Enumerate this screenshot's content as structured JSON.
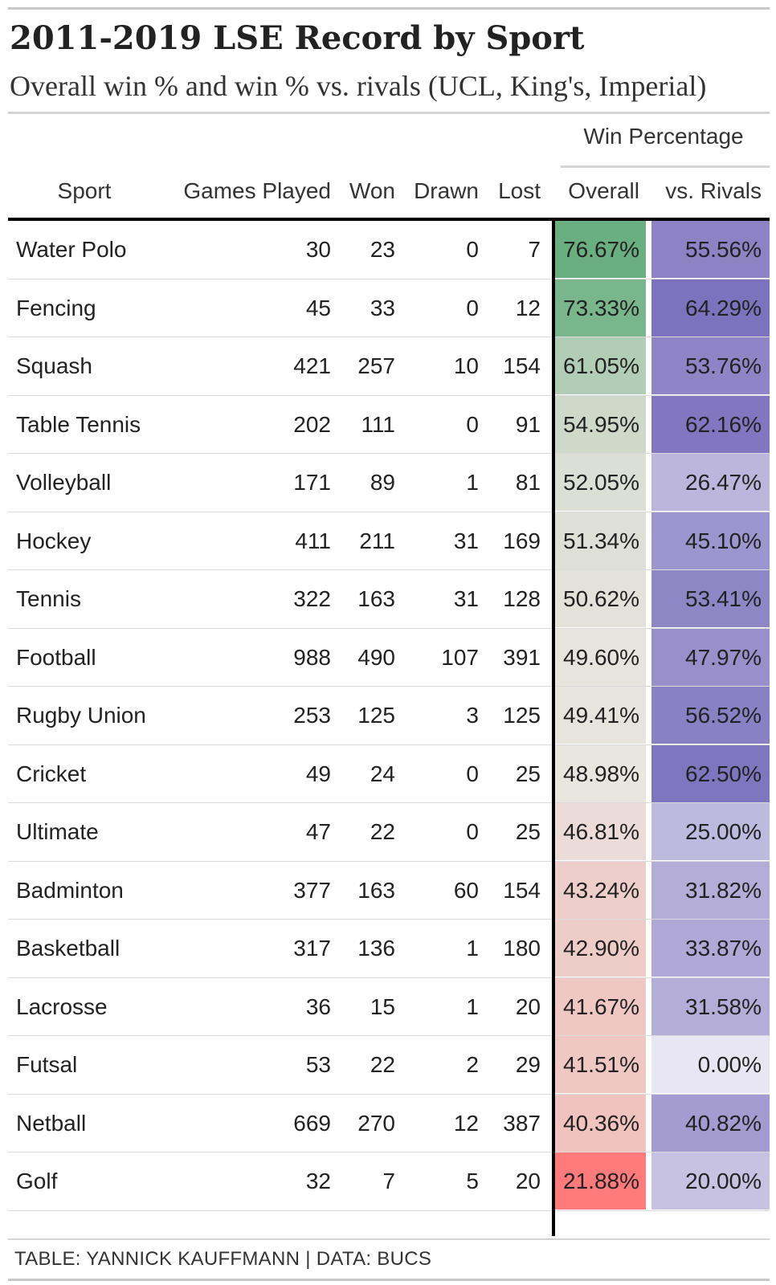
{
  "title": "2011-2019 LSE Record by Sport",
  "subtitle": "Overall win % and win % vs. rivals (UCL, King's, Imperial)",
  "spanner": "Win Percentage",
  "columns": {
    "sport": "Sport",
    "games": "Games Played",
    "won": "Won",
    "drawn": "Drawn",
    "lost": "Lost",
    "overall": "Overall",
    "rivals": "vs. Rivals"
  },
  "footer": "TABLE: YANNICK KAUFFMANN | DATA: BUCS",
  "colors": {
    "overall_low": "#ff7b7b",
    "overall_mid": "#e9e5df",
    "overall_high": "#6aaf7f",
    "rivals_low": "#e8e6f3",
    "rivals_high": "#7d72bd"
  },
  "chart_data": {
    "type": "table",
    "color_scale": {
      "overall_domain": [
        21.88,
        49.0,
        76.67
      ],
      "rivals_domain": [
        0.0,
        64.29
      ]
    },
    "rows": [
      {
        "sport": "Water Polo",
        "games": "30",
        "won": "23",
        "drawn": "0",
        "lost": "7",
        "overall": 76.67,
        "overall_label": "76.67%",
        "rivals": 55.56,
        "rivals_label": "55.56%"
      },
      {
        "sport": "Fencing",
        "games": "45",
        "won": "33",
        "drawn": "0",
        "lost": "12",
        "overall": 73.33,
        "overall_label": "73.33%",
        "rivals": 64.29,
        "rivals_label": "64.29%"
      },
      {
        "sport": "Squash",
        "games": "421",
        "won": "257",
        "drawn": "10",
        "lost": "154",
        "overall": 61.05,
        "overall_label": "61.05%",
        "rivals": 53.76,
        "rivals_label": "53.76%"
      },
      {
        "sport": "Table Tennis",
        "games": "202",
        "won": "111",
        "drawn": "0",
        "lost": "91",
        "overall": 54.95,
        "overall_label": "54.95%",
        "rivals": 62.16,
        "rivals_label": "62.16%"
      },
      {
        "sport": "Volleyball",
        "games": "171",
        "won": "89",
        "drawn": "1",
        "lost": "81",
        "overall": 52.05,
        "overall_label": "52.05%",
        "rivals": 26.47,
        "rivals_label": "26.47%"
      },
      {
        "sport": "Hockey",
        "games": "411",
        "won": "211",
        "drawn": "31",
        "lost": "169",
        "overall": 51.34,
        "overall_label": "51.34%",
        "rivals": 45.1,
        "rivals_label": "45.10%"
      },
      {
        "sport": "Tennis",
        "games": "322",
        "won": "163",
        "drawn": "31",
        "lost": "128",
        "overall": 50.62,
        "overall_label": "50.62%",
        "rivals": 53.41,
        "rivals_label": "53.41%"
      },
      {
        "sport": "Football",
        "games": "988",
        "won": "490",
        "drawn": "107",
        "lost": "391",
        "overall": 49.6,
        "overall_label": "49.60%",
        "rivals": 47.97,
        "rivals_label": "47.97%"
      },
      {
        "sport": "Rugby Union",
        "games": "253",
        "won": "125",
        "drawn": "3",
        "lost": "125",
        "overall": 49.41,
        "overall_label": "49.41%",
        "rivals": 56.52,
        "rivals_label": "56.52%"
      },
      {
        "sport": "Cricket",
        "games": "49",
        "won": "24",
        "drawn": "0",
        "lost": "25",
        "overall": 48.98,
        "overall_label": "48.98%",
        "rivals": 62.5,
        "rivals_label": "62.50%"
      },
      {
        "sport": "Ultimate",
        "games": "47",
        "won": "22",
        "drawn": "0",
        "lost": "25",
        "overall": 46.81,
        "overall_label": "46.81%",
        "rivals": 25.0,
        "rivals_label": "25.00%"
      },
      {
        "sport": "Badminton",
        "games": "377",
        "won": "163",
        "drawn": "60",
        "lost": "154",
        "overall": 43.24,
        "overall_label": "43.24%",
        "rivals": 31.82,
        "rivals_label": "31.82%"
      },
      {
        "sport": "Basketball",
        "games": "317",
        "won": "136",
        "drawn": "1",
        "lost": "180",
        "overall": 42.9,
        "overall_label": "42.90%",
        "rivals": 33.87,
        "rivals_label": "33.87%"
      },
      {
        "sport": "Lacrosse",
        "games": "36",
        "won": "15",
        "drawn": "1",
        "lost": "20",
        "overall": 41.67,
        "overall_label": "41.67%",
        "rivals": 31.58,
        "rivals_label": "31.58%"
      },
      {
        "sport": "Futsal",
        "games": "53",
        "won": "22",
        "drawn": "2",
        "lost": "29",
        "overall": 41.51,
        "overall_label": "41.51%",
        "rivals": 0.0,
        "rivals_label": "0.00%"
      },
      {
        "sport": "Netball",
        "games": "669",
        "won": "270",
        "drawn": "12",
        "lost": "387",
        "overall": 40.36,
        "overall_label": "40.36%",
        "rivals": 40.82,
        "rivals_label": "40.82%"
      },
      {
        "sport": "Golf",
        "games": "32",
        "won": "7",
        "drawn": "5",
        "lost": "20",
        "overall": 21.88,
        "overall_label": "21.88%",
        "rivals": 20.0,
        "rivals_label": "20.00%"
      }
    ]
  }
}
